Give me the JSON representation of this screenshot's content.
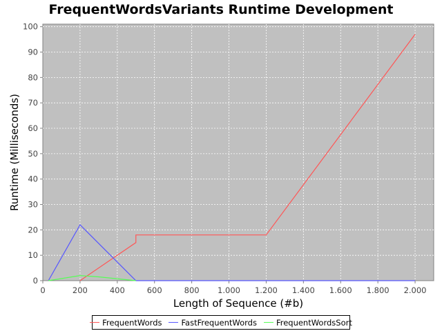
{
  "chart_data": {
    "type": "line",
    "title": "FrequentWordsVariants Runtime Development",
    "xlabel": "Length of Sequence (#b)",
    "ylabel": "Runtime (Milliseconds)",
    "xlim": [
      0,
      2100
    ],
    "ylim": [
      0,
      101
    ],
    "x_ticks": [
      0,
      200,
      400,
      600,
      800,
      1000,
      1200,
      1400,
      1600,
      1800,
      2000
    ],
    "x_tick_labels": [
      "0",
      "200",
      "400",
      "600",
      "800",
      "1.000",
      "1.200",
      "1.400",
      "1.600",
      "1.800",
      "2.000"
    ],
    "y_ticks": [
      0,
      10,
      20,
      30,
      40,
      50,
      60,
      70,
      80,
      90,
      100
    ],
    "y_tick_labels": [
      "0",
      "10",
      "20",
      "30",
      "40",
      "50",
      "60",
      "70",
      "80",
      "90",
      "100"
    ],
    "grid": true,
    "legend_position": "bottom",
    "plot_background": "#c0c0c0",
    "series": [
      {
        "name": "FrequentWords",
        "color": "#ff5555",
        "x": [
          200,
          500,
          500,
          1200,
          2000
        ],
        "y": [
          0,
          15,
          18,
          18,
          97
        ]
      },
      {
        "name": "FastFrequentWords",
        "color": "#5555ff",
        "x": [
          30,
          200,
          500,
          2000
        ],
        "y": [
          0,
          22,
          0,
          0
        ]
      },
      {
        "name": "FrequentWordsSort",
        "color": "#55ff55",
        "x": [
          30,
          200,
          300,
          500
        ],
        "y": [
          0,
          2,
          1.5,
          0
        ]
      }
    ]
  }
}
